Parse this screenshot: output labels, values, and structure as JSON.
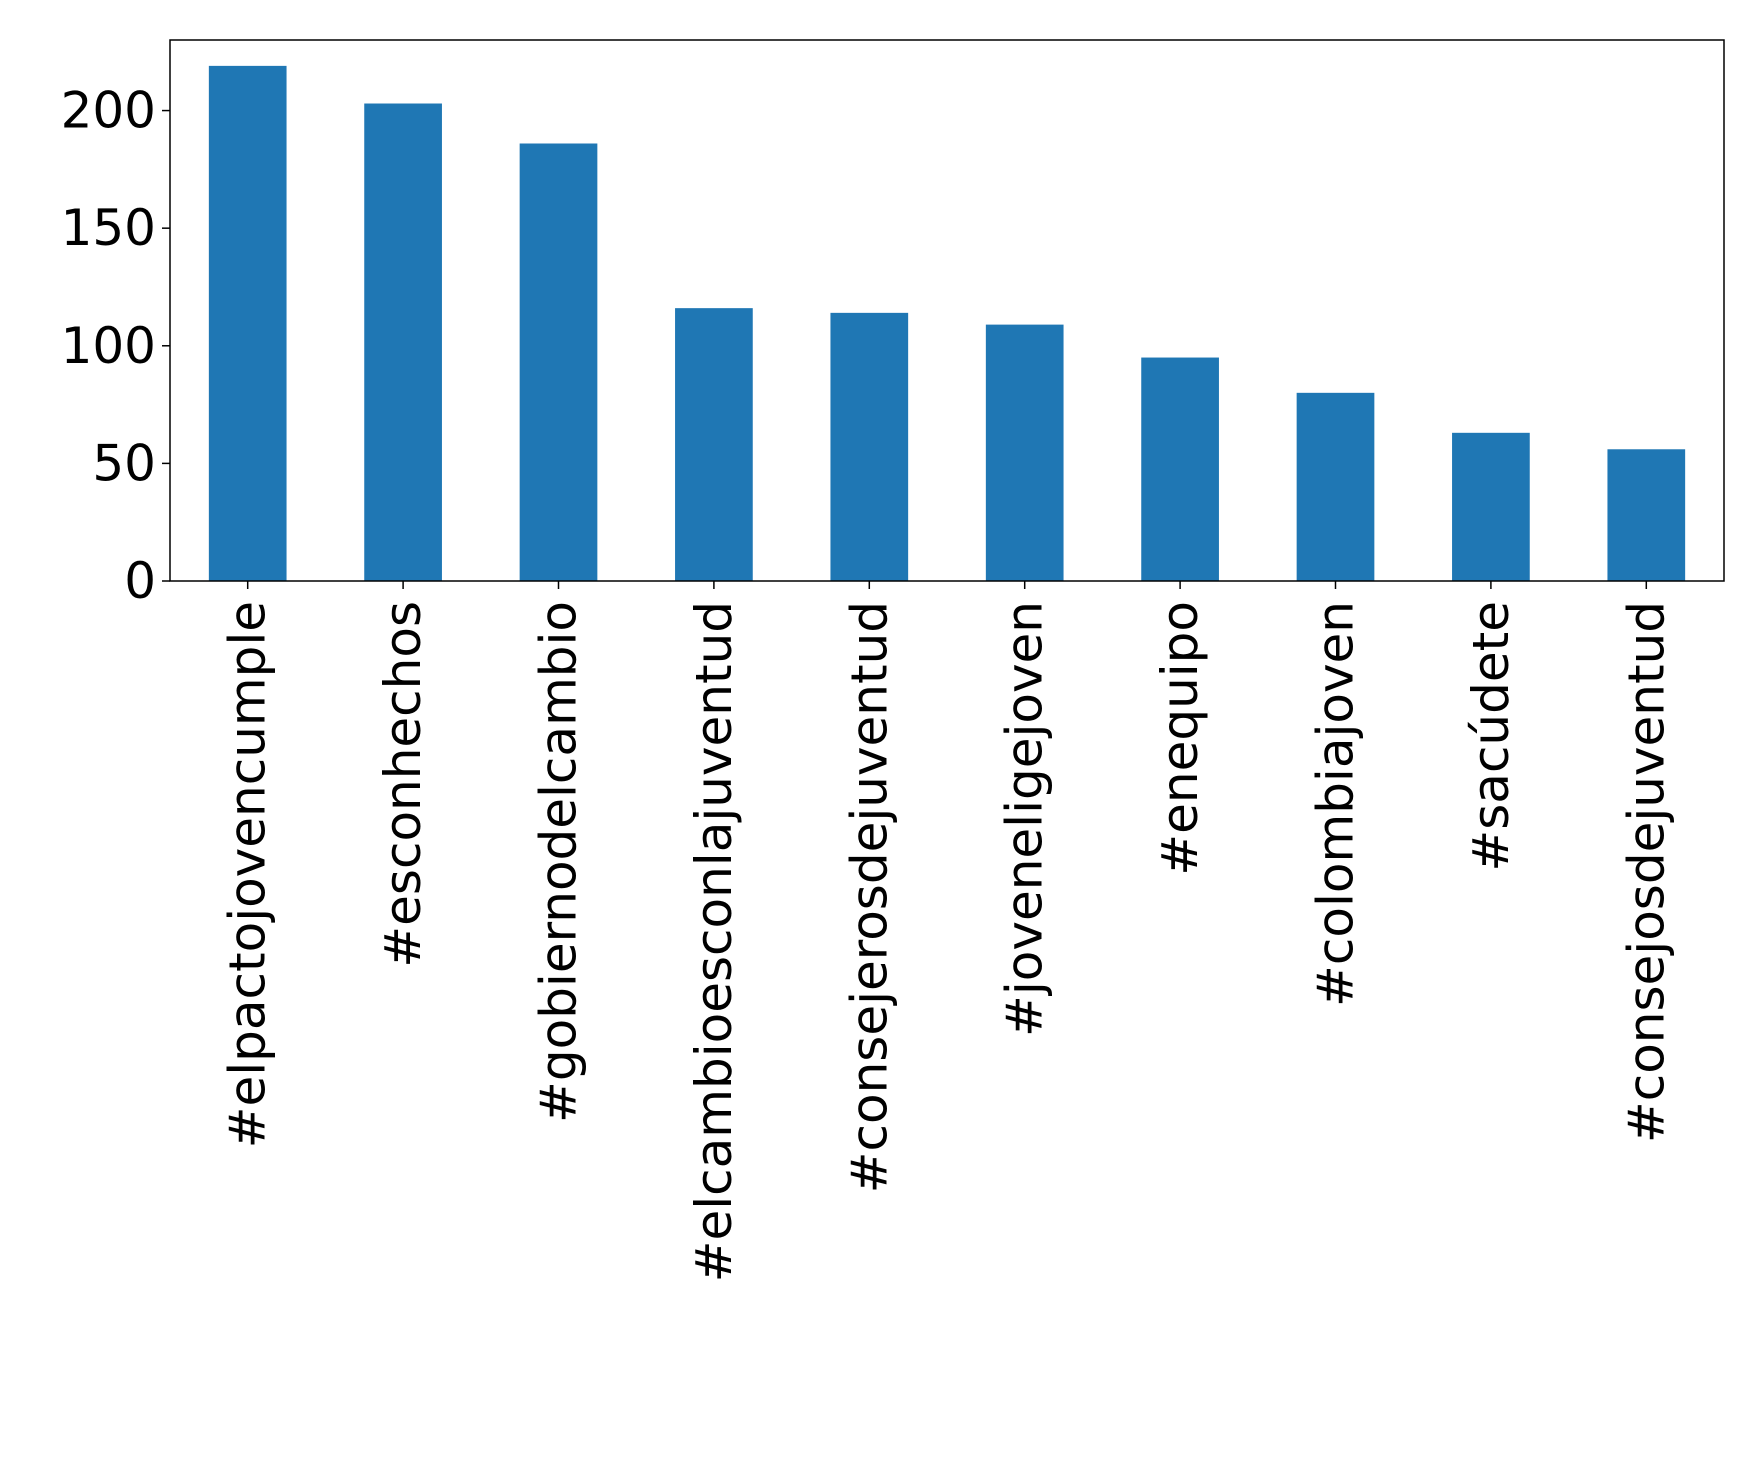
{
  "chart_data": {
    "type": "bar",
    "categories": [
      "#elpactojovencumple",
      "#esconhechos",
      "#gobiernodelcambio",
      "#elcambioesconlajuventud",
      "#consejerosdejuventud",
      "#joveneligejoven",
      "#enequipo",
      "#colombiajoven",
      "#sacúdete",
      "#consejosdejuventud"
    ],
    "values": [
      219,
      203,
      186,
      116,
      114,
      109,
      95,
      80,
      63,
      56
    ],
    "ylim": [
      0,
      230
    ],
    "yticks": [
      0,
      50,
      100,
      150,
      200
    ],
    "title": "",
    "xlabel": "",
    "ylabel": "",
    "bar_color": "#1f77b4",
    "grid": false,
    "legend": "none"
  }
}
